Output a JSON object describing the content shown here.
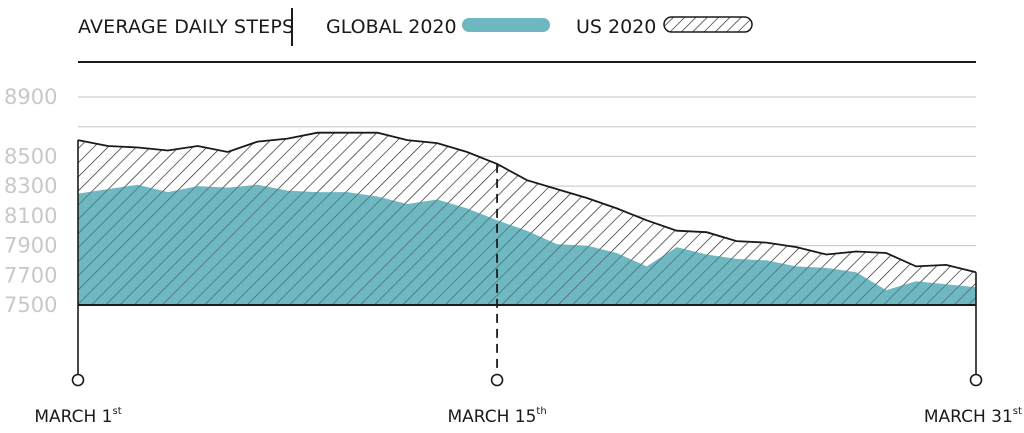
{
  "chart_data": {
    "type": "area",
    "title": "AVERAGE DAILY STEPS",
    "series": [
      {
        "name": "GLOBAL 2020",
        "color": "#6fb8c2",
        "fill_style": "solid",
        "values": [
          8250,
          8280,
          8310,
          8260,
          8300,
          8290,
          8310,
          8270,
          8260,
          8260,
          8230,
          8180,
          8210,
          8150,
          8070,
          8000,
          7910,
          7900,
          7850,
          7760,
          7890,
          7840,
          7810,
          7800,
          7760,
          7750,
          7720,
          7600,
          7660,
          7640,
          7620
        ]
      },
      {
        "name": "US 2020",
        "color": "#1a1a1a",
        "fill_style": "diagonal-hatch",
        "values": [
          8610,
          8570,
          8560,
          8540,
          8570,
          8530,
          8600,
          8620,
          8660,
          8660,
          8660,
          8610,
          8590,
          8530,
          8450,
          8340,
          8280,
          8220,
          8150,
          8070,
          8000,
          7990,
          7930,
          7920,
          7890,
          7840,
          7860,
          7850,
          7760,
          7770,
          7720
        ]
      }
    ],
    "x": [
      1,
      2,
      3,
      4,
      5,
      6,
      7,
      8,
      9,
      10,
      11,
      12,
      13,
      14,
      15,
      16,
      17,
      18,
      19,
      20,
      21,
      22,
      23,
      24,
      25,
      26,
      27,
      28,
      29,
      30,
      31
    ],
    "ylim": [
      7500,
      8900
    ],
    "yticks": [
      "7500",
      "7700",
      "7900",
      "8100",
      "8300",
      "8500",
      "8900"
    ],
    "ytick_values": [
      7500,
      7700,
      7900,
      8100,
      8300,
      8500,
      8900
    ],
    "grid": true,
    "legend_position": "top",
    "xticks": [
      {
        "day": 1,
        "text": "MARCH 1",
        "sup": "st"
      },
      {
        "day": 15,
        "text": "MARCH 15",
        "sup": "th"
      },
      {
        "day": 31,
        "text": "MARCH 31",
        "sup": "st"
      }
    ],
    "marker_day": 15
  }
}
